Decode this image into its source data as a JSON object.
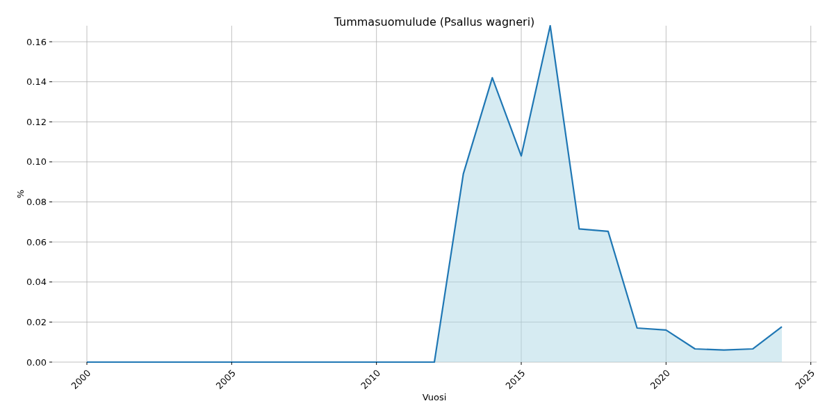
{
  "chart_data": {
    "type": "area",
    "title": "Tummasuomulude (Psallus wagneri)",
    "xlabel": "Vuosi",
    "ylabel": "%",
    "x": [
      2000,
      2001,
      2002,
      2003,
      2004,
      2005,
      2006,
      2007,
      2008,
      2009,
      2010,
      2011,
      2012,
      2013,
      2014,
      2015,
      2016,
      2017,
      2018,
      2019,
      2020,
      2021,
      2022,
      2023,
      2024
    ],
    "series": [
      {
        "color": "#1f77b4",
        "values": [
          0,
          0,
          0,
          0,
          0,
          0,
          0,
          0,
          0,
          0,
          0,
          0,
          0,
          0.094,
          0.142,
          0.103,
          0.168,
          0.0665,
          0.0653,
          0.017,
          0.016,
          0.0066,
          0.006,
          0.0066,
          0.0177
        ]
      }
    ],
    "xlim": [
      1998.8,
      2025.2
    ],
    "xticks": [
      2000,
      2005,
      2010,
      2015,
      2020,
      2025
    ],
    "ylim": [
      0,
      0.168
    ],
    "yticks": [
      {
        "value": 0,
        "label": "0.00"
      },
      {
        "value": 0.02,
        "label": "0.02"
      },
      {
        "value": 0.04,
        "label": "0.04"
      },
      {
        "value": 0.06,
        "label": "0.06"
      },
      {
        "value": 0.08,
        "label": "0.08"
      },
      {
        "value": 0.1,
        "label": "0.10"
      },
      {
        "value": 0.12,
        "label": "0.12"
      },
      {
        "value": 0.14,
        "label": "0.14"
      },
      {
        "value": 0.16,
        "label": "0.16"
      }
    ],
    "grid": true
  }
}
